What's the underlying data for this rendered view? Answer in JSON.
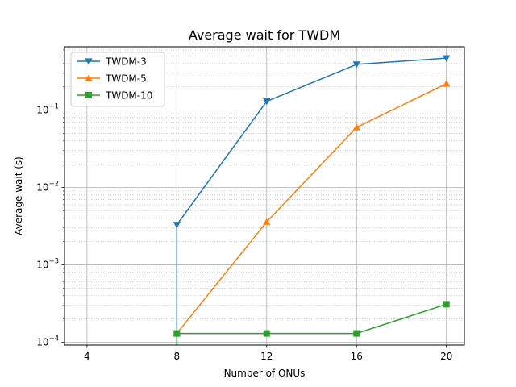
{
  "chart_data": {
    "type": "line",
    "title": "Average wait for TWDM",
    "xlabel": "Number of ONUs",
    "ylabel": "Average wait (s)",
    "yscale": "log",
    "xlim": [
      3.0,
      20.8
    ],
    "ylim": [
      9.2e-05,
      0.66
    ],
    "x_ticks": [
      4,
      8,
      12,
      16,
      20
    ],
    "y_ticks": [
      {
        "value": 0.0001,
        "base": "10",
        "exp": "−4"
      },
      {
        "value": 0.001,
        "base": "10",
        "exp": "−3"
      },
      {
        "value": 0.01,
        "base": "10",
        "exp": "−2"
      },
      {
        "value": 0.1,
        "base": "10",
        "exp": "−1"
      }
    ],
    "grid": true,
    "legend_position": "upper-left",
    "series": [
      {
        "name": "TWDM-3",
        "color": "#1f77b4",
        "marker": "triangle-down",
        "x": [
          8,
          8,
          12,
          16,
          20
        ],
        "y": [
          5e-05,
          0.0033,
          0.13,
          0.39,
          0.47
        ]
      },
      {
        "name": "TWDM-5",
        "color": "#ff7f0e",
        "marker": "triangle-up",
        "x": [
          8,
          12,
          16,
          20
        ],
        "y": [
          0.00013,
          0.0036,
          0.06,
          0.22
        ]
      },
      {
        "name": "TWDM-10",
        "color": "#2ca02c",
        "marker": "square",
        "x": [
          8,
          8,
          12,
          16,
          20
        ],
        "y": [
          5e-05,
          0.00013,
          0.00013,
          0.00013,
          0.00031
        ]
      }
    ]
  }
}
